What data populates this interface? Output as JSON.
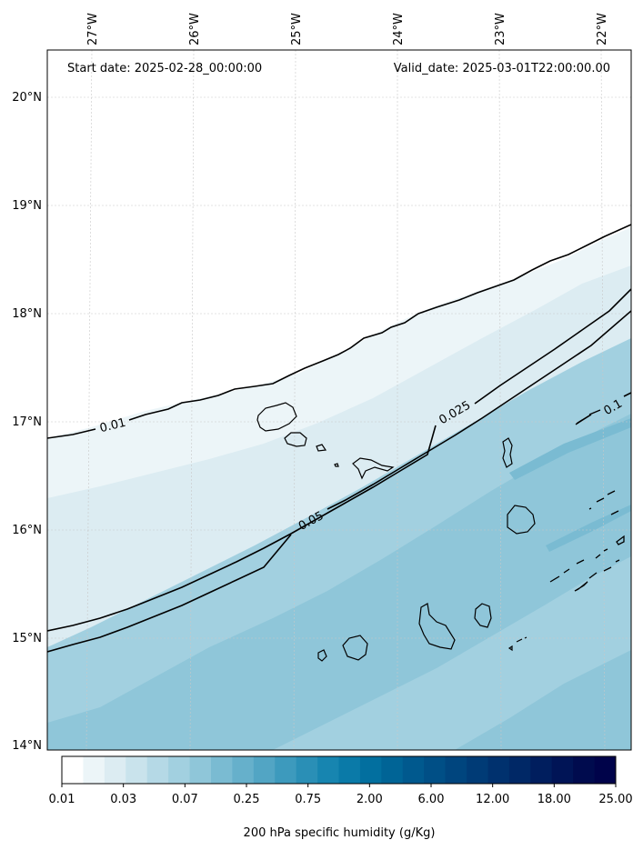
{
  "header": {
    "start_label": "Start date: 2025-02-28_00:00:00",
    "valid_label": "Valid_date: 2025-03-01T22:00:00.00"
  },
  "axes": {
    "lon_ticks": [
      "27°W",
      "26°W",
      "25°W",
      "24°W",
      "23°W",
      "22°W"
    ],
    "lat_ticks": [
      "20°N",
      "19°N",
      "18°N",
      "17°N",
      "16°N",
      "15°N",
      "14°N"
    ]
  },
  "contours": {
    "labels": [
      "0.01",
      "0.025",
      "0.05",
      "0.1"
    ]
  },
  "colorbar": {
    "tick_labels": [
      "0.01",
      "0.03",
      "0.07",
      "0.25",
      "0.75",
      "2.00",
      "6.00",
      "12.00",
      "18.00",
      "25.00"
    ],
    "label": "200 hPa specific humidity (g/Kg)",
    "colors": [
      "#ffffff",
      "#ecf5f8",
      "#dcecf2",
      "#c9e3ec",
      "#b5d9e6",
      "#a2d0e0",
      "#8fc6d9",
      "#7abbd2",
      "#66b0cb",
      "#52a5c4",
      "#3d9abd",
      "#2a8fb6",
      "#1785b0",
      "#0a7aa8",
      "#026f9f",
      "#006496",
      "#00598e",
      "#004f86",
      "#00457e",
      "#003b76",
      "#00316e",
      "#002866",
      "#001e5e",
      "#001456",
      "#000b4e",
      "#00034a"
    ]
  },
  "chart_data": {
    "type": "map",
    "lon_range": [
      -27.4,
      -21.8
    ],
    "lat_range": [
      14.0,
      20.4
    ],
    "field": "200 hPa specific humidity (g/Kg)",
    "contour_levels": [
      0.01,
      0.025,
      0.05,
      0.1
    ],
    "grid": true
  }
}
